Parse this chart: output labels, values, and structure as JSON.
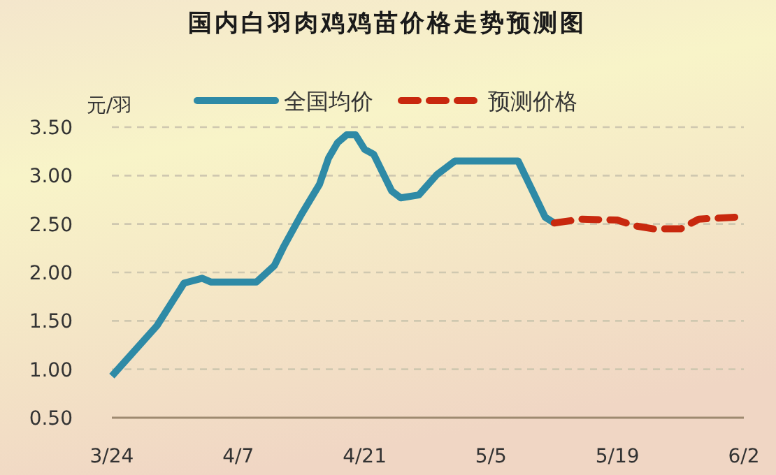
{
  "chart_data": {
    "type": "line",
    "title": "国内白羽肉鸡鸡苗价格走势预测图",
    "ylabel": "元/羽",
    "xlim": [
      "--03-24",
      "--06-02"
    ],
    "xticks": [
      {
        "value": "--03-24",
        "label": "3/24"
      },
      {
        "value": "--04-07",
        "label": "4/7"
      },
      {
        "value": "--04-21",
        "label": "4/21"
      },
      {
        "value": "--05-05",
        "label": "5/5"
      },
      {
        "value": "--05-19",
        "label": "5/19"
      },
      {
        "value": "--06-02",
        "label": "6/2"
      }
    ],
    "ylim": [
      0.5,
      3.5
    ],
    "yticks": [
      {
        "value": 0.5,
        "label": "0.50"
      },
      {
        "value": 1,
        "label": "1.00"
      },
      {
        "value": 1.5,
        "label": "1.50"
      },
      {
        "value": 2,
        "label": "2.00"
      },
      {
        "value": 2.5,
        "label": "2.50"
      },
      {
        "value": 3,
        "label": "3.00"
      },
      {
        "value": 3.5,
        "label": "3.50"
      }
    ],
    "grid": "y",
    "legend": "top",
    "marker": "none",
    "series": [
      {
        "name": "全国均价",
        "color": "#2e8aa6",
        "line_style": "solid",
        "x": [
          "--03-24",
          "--03-29",
          "--04-01",
          "--04-03",
          "--04-04",
          "--04-09",
          "--04-11",
          "--04-12",
          "--04-14",
          "--04-16",
          "--04-17",
          "--04-18",
          "--04-19",
          "--04-20",
          "--04-21",
          "--04-22",
          "--04-24",
          "--04-25",
          "--04-27",
          "--04-29",
          "--05-01",
          "--05-08",
          "--05-11",
          "--05-12"
        ],
        "values": [
          0.93,
          1.45,
          1.89,
          1.94,
          1.9,
          1.9,
          2.07,
          2.26,
          2.6,
          2.91,
          3.18,
          3.34,
          3.42,
          3.42,
          3.27,
          3.22,
          2.84,
          2.77,
          2.8,
          3.01,
          3.15,
          3.15,
          2.57,
          2.51
        ]
      },
      {
        "name": "预测价格",
        "color": "#c8280e",
        "line_style": "dashed",
        "x": [
          "--05-12",
          "--05-15",
          "--05-19",
          "--05-21",
          "--05-23",
          "--05-26",
          "--05-28",
          "--06-01"
        ],
        "values": [
          2.51,
          2.55,
          2.54,
          2.48,
          2.45,
          2.45,
          2.55,
          2.57
        ]
      }
    ]
  }
}
